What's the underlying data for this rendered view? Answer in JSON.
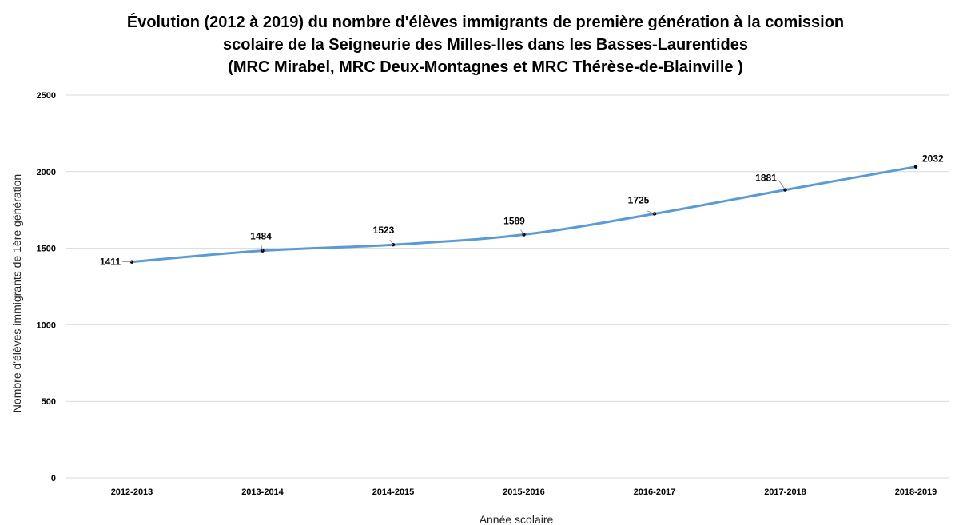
{
  "chart_data": {
    "type": "line",
    "title_lines": [
      "Évolution (2012 à 2019) du nombre d'élèves immigrants de première génération à la comission",
      "scolaire de la Seigneurie des Milles-Iles dans les Basses-Laurentides",
      "(MRC Mirabel, MRC Deux-Montagnes et MRC Thérèse-de-Blainville )"
    ],
    "xlabel": "Année scolaire",
    "ylabel": "Nombre d'élèves immigrants de 1ère génération",
    "categories": [
      "2012-2013",
      "2013-2014",
      "2014-2015",
      "2015-2016",
      "2016-2017",
      "2017-2018",
      "2018-2019"
    ],
    "values": [
      1411,
      1484,
      1523,
      1589,
      1725,
      1881,
      2032
    ],
    "ylim": [
      0,
      2500
    ],
    "yticks": [
      "0",
      "500",
      "1000",
      "1500",
      "2000",
      "2500"
    ],
    "grid": true,
    "legend": "none",
    "line_color": "#5b9bd5",
    "grid_color": "#d9d9d9"
  }
}
